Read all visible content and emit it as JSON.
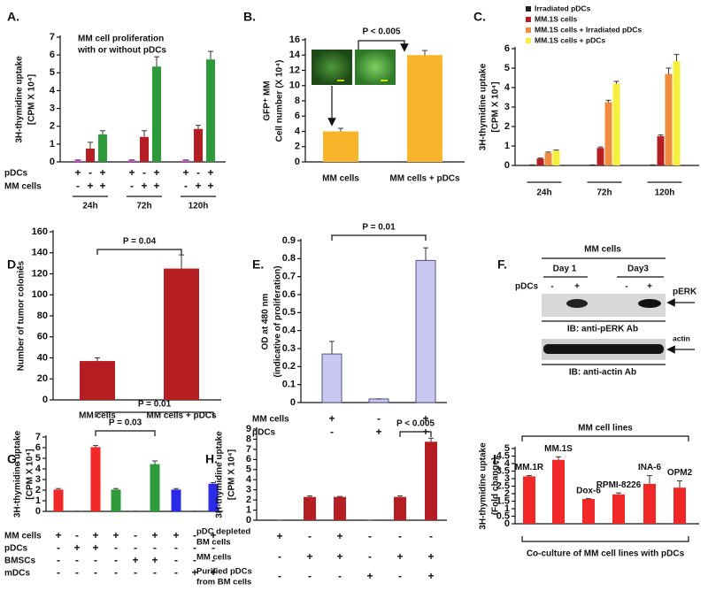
{
  "chart_data": [
    {
      "type": "bar",
      "panel": "A.",
      "title": [
        "MM cell proliferation",
        "with or without pDCs"
      ],
      "ylabel": [
        "3H-thymidine uptake",
        "[CPM X 10⁴]"
      ],
      "ylim": [
        0,
        7
      ],
      "yticks": [
        0,
        1,
        2,
        3,
        4,
        5,
        6,
        7
      ],
      "categories": [
        "24h",
        "72h",
        "120h"
      ],
      "series": [
        {
          "color": "#e040e0",
          "values": [
            0.08,
            0.08,
            0.08
          ],
          "errors": [
            0.03,
            0.03,
            0.03
          ]
        },
        {
          "color": "#b51f24",
          "values": [
            0.75,
            1.4,
            1.85
          ],
          "errors": [
            0.35,
            0.35,
            0.2
          ]
        },
        {
          "color": "#2e9a3c",
          "values": [
            1.55,
            5.35,
            5.75
          ],
          "errors": [
            0.2,
            0.55,
            0.45
          ]
        }
      ],
      "conditions": [
        {
          "label": "pDCs",
          "signs": [
            "+",
            "-",
            "+",
            "+",
            "-",
            "+",
            "+",
            "-",
            "+"
          ]
        },
        {
          "label": "MM cells",
          "signs": [
            "-",
            "+",
            "+",
            "-",
            "+",
            "+",
            "-",
            "+",
            "+"
          ]
        }
      ]
    },
    {
      "type": "bar",
      "panel": "B.",
      "ylabel": [
        "GFP⁺ MM",
        "Cell number (X 10⁴)"
      ],
      "ylim": [
        0,
        16
      ],
      "yticks": [
        0,
        2,
        4,
        6,
        8,
        10,
        12,
        14,
        16
      ],
      "categories": [
        "MM cells",
        "MM cells + pDCs"
      ],
      "values": [
        4,
        14
      ],
      "errors": [
        0.4,
        0.6
      ],
      "color": "#f7b52c",
      "annotations": [
        "P < 0.005"
      ]
    },
    {
      "type": "bar",
      "panel": "C.",
      "ylabel": [
        "3H-thymidine uptake",
        "[CPM X 10⁴]"
      ],
      "ylim": [
        0,
        6
      ],
      "yticks": [
        0,
        1,
        2,
        3,
        4,
        5,
        6
      ],
      "categories": [
        "24h",
        "72h",
        "120h"
      ],
      "series": [
        {
          "name": "Irradiated pDCs",
          "color": "#222222",
          "values": [
            0.02,
            0.02,
            0.02
          ],
          "errors": [
            0.01,
            0.01,
            0.01
          ]
        },
        {
          "name": "MM.1S cells",
          "color": "#b51f24",
          "values": [
            0.35,
            0.9,
            1.5
          ],
          "errors": [
            0.03,
            0.05,
            0.07
          ]
        },
        {
          "name": "MM.1S cells + Irradiated pDCs",
          "color": "#f08a3c",
          "values": [
            0.65,
            3.25,
            4.7
          ],
          "errors": [
            0.04,
            0.1,
            0.3
          ]
        },
        {
          "name": "MM.1S cells + pDCs",
          "color": "#f5f03c",
          "values": [
            0.75,
            4.2,
            5.35
          ],
          "errors": [
            0.04,
            0.12,
            0.35
          ]
        }
      ],
      "legend": "upper left"
    },
    {
      "type": "bar",
      "panel": "D.",
      "ylabel": [
        "Number of tumor colonies"
      ],
      "ylim": [
        0,
        160
      ],
      "yticks": [
        0,
        20,
        40,
        60,
        80,
        100,
        120,
        140,
        160
      ],
      "categories": [
        "MM cells",
        "MM cells + pDCs"
      ],
      "values": [
        37,
        125
      ],
      "errors": [
        3,
        13
      ],
      "color": "#b51f24",
      "annotations": [
        "P = 0.04"
      ]
    },
    {
      "type": "bar",
      "panel": "E.",
      "ylabel": [
        "OD at 480 nm",
        "(indicative of proliferation)"
      ],
      "ylim": [
        0,
        0.9
      ],
      "yticks": [
        0,
        0.1,
        0.2,
        0.3,
        0.4,
        0.5,
        0.6,
        0.7,
        0.8,
        0.9
      ],
      "values": [
        0.27,
        0.02,
        0.79
      ],
      "errors": [
        0.07,
        0,
        0.07
      ],
      "color": "#c8c8f2",
      "edgecolor": "#555577",
      "conditions": [
        {
          "label": "MM cells",
          "signs": [
            "+",
            "-",
            "+"
          ]
        },
        {
          "label": "pDCs",
          "signs": [
            "-",
            "+",
            "+"
          ]
        }
      ],
      "annotations": [
        "P = 0.01"
      ]
    },
    {
      "type": "bar",
      "panel": "G.",
      "ylabel": [
        "3H-thymidine uptake",
        "[CPM X 10⁴]"
      ],
      "ylim": [
        0,
        7
      ],
      "yticks": [
        0,
        1,
        2,
        3,
        4,
        5,
        6,
        7
      ],
      "values": [
        2.05,
        0.02,
        6.05,
        2.05,
        0.02,
        4.45,
        2.05,
        0.02,
        2.6
      ],
      "errors": [
        0.1,
        0,
        0.15,
        0.1,
        0,
        0.3,
        0.1,
        0,
        0.1
      ],
      "colors": [
        "#f02828",
        "#f02828",
        "#f02828",
        "#2e9a3c",
        "#2e9a3c",
        "#2e9a3c",
        "#2a2ae8",
        "#2a2ae8",
        "#2a2ae8"
      ],
      "conditions": [
        {
          "label": "MM cells",
          "signs": [
            "+",
            "-",
            "+",
            "+",
            "-",
            "+",
            "+",
            "-",
            "+"
          ]
        },
        {
          "label": "pDCs",
          "signs": [
            "-",
            "+",
            "+",
            "-",
            "-",
            "-",
            "-",
            "-",
            "-"
          ]
        },
        {
          "label": "BMSCs",
          "signs": [
            "-",
            "-",
            "-",
            "-",
            "+",
            "+",
            "-",
            "-",
            "-"
          ]
        },
        {
          "label": "mDCs",
          "signs": [
            "-",
            "-",
            "-",
            "-",
            "-",
            "-",
            "-",
            "+",
            "+"
          ]
        }
      ],
      "annotations": [
        "P = 0.01",
        "P = 0.03"
      ]
    },
    {
      "type": "bar",
      "panel": "H.",
      "ylabel": [
        "3H-thymidine uptake",
        "[CPM X 10⁴]"
      ],
      "ylim": [
        0,
        9
      ],
      "yticks": [
        0,
        1,
        2,
        3,
        4,
        5,
        6,
        7,
        8,
        9
      ],
      "values": [
        0,
        2.3,
        2.3,
        0,
        2.3,
        7.75
      ],
      "errors": [
        0,
        0.1,
        0.05,
        0,
        0.1,
        0.35
      ],
      "color": "#b51f24",
      "conditions": [
        {
          "label": [
            "pDC depleted",
            "BM cells"
          ],
          "signs": [
            "+",
            "-",
            "+",
            "-",
            "-",
            "-"
          ]
        },
        {
          "label": [
            "MM cells"
          ],
          "signs": [
            "-",
            "+",
            "+",
            "-",
            "+",
            "+"
          ]
        },
        {
          "label": [
            "Purified pDCs",
            "from BM cells"
          ],
          "signs": [
            "-",
            "-",
            "-",
            "+",
            "-",
            "+"
          ]
        }
      ],
      "annotations": [
        "P < 0.005"
      ]
    },
    {
      "type": "bar",
      "panel": "I.",
      "ylabel": [
        "3H-thymidine uptake",
        "(Fold change)"
      ],
      "ylim": [
        0,
        5
      ],
      "yticks": [
        0,
        0.5,
        1,
        1.5,
        2,
        2.5,
        3,
        3.5,
        4,
        4.5,
        5
      ],
      "categories": [
        "MM.1R",
        "MM.1S",
        "Dox-6",
        "RPMI-8226",
        "INA-6",
        "OPM2"
      ],
      "values": [
        3.15,
        4.25,
        1.65,
        1.95,
        2.65,
        2.4
      ],
      "errors": [
        0.05,
        0.2,
        0.02,
        0.1,
        0.55,
        0.45
      ],
      "color": "#f02828",
      "annotations": [
        "MM cell lines"
      ],
      "xlabel": "Co-culture of MM cell lines with pDCs"
    }
  ],
  "blot": {
    "panel": "F.",
    "header": "MM cells",
    "days": [
      "Day 1",
      "Day3"
    ],
    "row_label": "pDCs",
    "signs": [
      "-",
      "+",
      "-",
      "+"
    ],
    "bands": [
      {
        "name": "pERK",
        "antibody": "IB: anti-pERK Ab"
      },
      {
        "name": "actin",
        "antibody": "IB: anti-actin Ab"
      }
    ]
  }
}
